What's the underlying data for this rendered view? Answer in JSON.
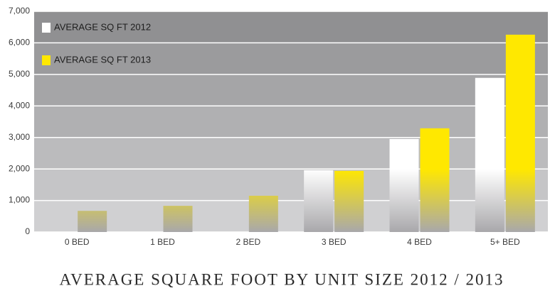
{
  "chart_data": {
    "type": "bar",
    "title": "AVERAGE SQUARE FOOT BY UNIT SIZE 2012 / 2013",
    "categories": [
      "0 BED",
      "1 BED",
      "2 BED",
      "3 BED",
      "4 BED",
      "5+ BED"
    ],
    "series": [
      {
        "name": "AVERAGE SQ FT 2012",
        "color": "#ffffff",
        "values": [
          null,
          null,
          null,
          1960,
          2950,
          4890
        ]
      },
      {
        "name": "AVERAGE SQ FT 2013",
        "color": "#ffe800",
        "values": [
          670,
          830,
          1150,
          1940,
          3290,
          6260
        ]
      }
    ],
    "ylim": [
      0,
      7000
    ],
    "yticks": [
      0,
      {
        "value": 1000,
        "label": "1,000"
      },
      {
        "value": 2000,
        "label": "2,000"
      },
      {
        "value": 3000,
        "label": "3,000"
      },
      {
        "value": 4000,
        "label": "4,000"
      },
      {
        "value": 5000,
        "label": "5,000"
      },
      {
        "value": 6000,
        "label": "6,000"
      },
      {
        "value": 7000,
        "label": "7,000"
      }
    ],
    "grid": true,
    "legend": "top-left"
  }
}
